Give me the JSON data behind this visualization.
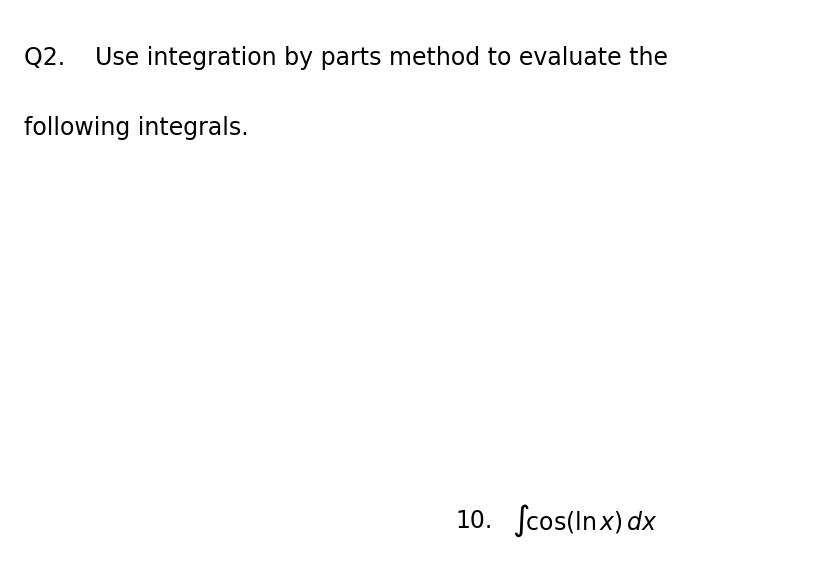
{
  "background_color": "#ffffff",
  "title_line1": "Q2.    Use integration by parts method to evaluate the",
  "title_line2": "following integrals.",
  "item_number": "10.",
  "integral_text": "$\\int\\!\\cos(\\ln x)\\, dx$",
  "title_fontsize": 17,
  "item_fontsize": 17,
  "integral_fontsize": 17,
  "text_color": "#000000",
  "fig_width": 8.28,
  "fig_height": 5.79,
  "dpi": 100
}
